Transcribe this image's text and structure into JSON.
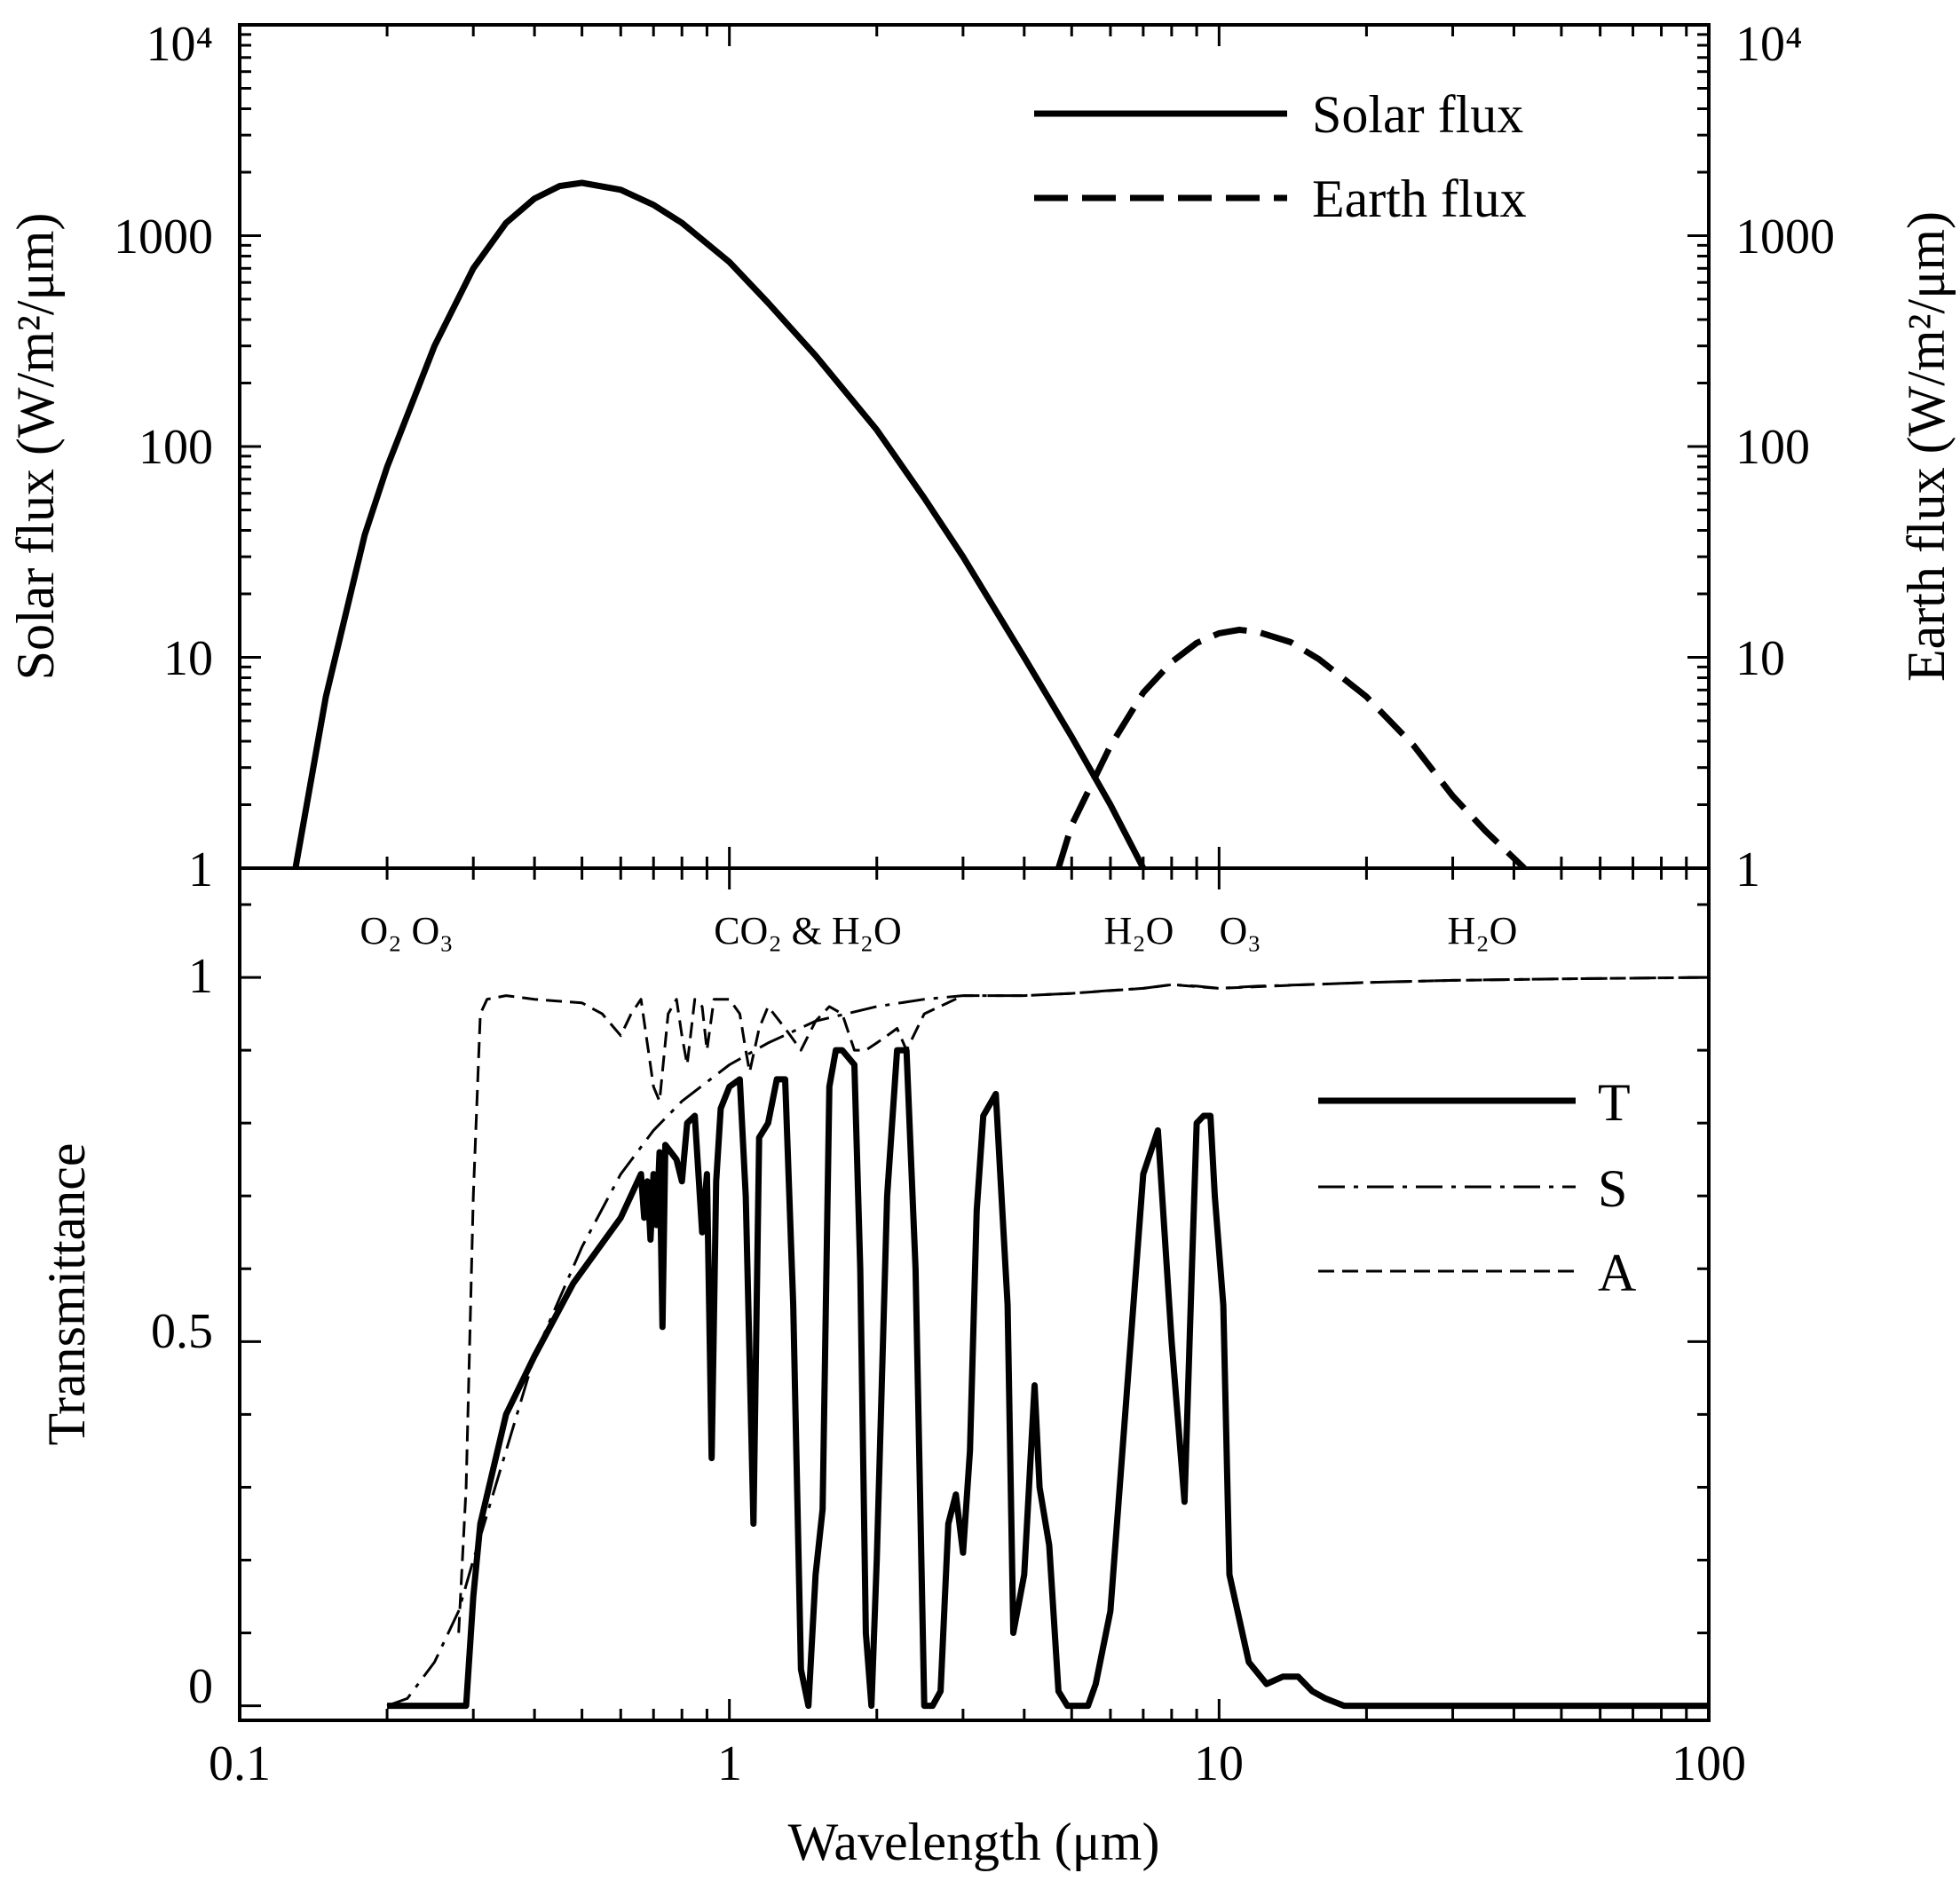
{
  "chart_data": [
    {
      "type": "line",
      "x_scale": "log",
      "y_scale": "log",
      "xlim": [
        0.1,
        100
      ],
      "ylim": [
        1,
        10000
      ],
      "ylabel_left": "Solar flux (W/m²/μm)",
      "ylabel_right": "Earth flux (W/m²/μm)",
      "y_tick_labels": [
        "1",
        "10",
        "100",
        "1000",
        "10⁴"
      ],
      "legend_position": "top-right",
      "series": [
        {
          "name": "Solar flux",
          "style": "solid",
          "x": [
            0.13,
            0.15,
            0.18,
            0.2,
            0.25,
            0.3,
            0.35,
            0.4,
            0.45,
            0.5,
            0.6,
            0.7,
            0.8,
            1.0,
            1.2,
            1.5,
            2.0,
            2.5,
            3.0,
            4.0,
            5.0,
            6.0,
            7.0
          ],
          "y": [
            1.0,
            6.5,
            38,
            80,
            300,
            700,
            1150,
            1500,
            1720,
            1780,
            1650,
            1400,
            1150,
            750,
            480,
            270,
            120,
            57,
            30,
            10,
            4.2,
            2.0,
            1.0
          ]
        },
        {
          "name": "Earth flux",
          "style": "dashed",
          "x": [
            4.7,
            5,
            6,
            7,
            8,
            9,
            10,
            11,
            12,
            14,
            16,
            20,
            25,
            30,
            35,
            42
          ],
          "y": [
            1.0,
            1.6,
            3.8,
            6.8,
            9.5,
            11.7,
            13.0,
            13.5,
            13.2,
            11.8,
            9.8,
            6.5,
            3.8,
            2.2,
            1.5,
            1.0
          ]
        }
      ]
    },
    {
      "type": "line",
      "x_scale": "log",
      "xlim": [
        0.1,
        100
      ],
      "ylim": [
        -0.02,
        1.15
      ],
      "xlabel": "Wavelength (μm)",
      "ylabel": "Transmittance",
      "x_tick_labels": [
        "0.1",
        "1",
        "10",
        "100"
      ],
      "y_tick_labels": [
        "0",
        "0.5",
        "1"
      ],
      "legend_position": "right",
      "band_labels": [
        {
          "text": "O₂ O₃",
          "x": 0.3
        },
        {
          "text": "CO₂ & H₂O",
          "x": 1.25
        },
        {
          "text": "H₂O",
          "x": 6.3
        },
        {
          "text": "O₃",
          "x": 10.5
        },
        {
          "text": "H₂O",
          "x": 25
        }
      ],
      "series": [
        {
          "name": "T",
          "style": "solid",
          "x": [
            0.2,
            0.25,
            0.29,
            0.3,
            0.31,
            0.35,
            0.4,
            0.48,
            0.6,
            0.66,
            0.67,
            0.68,
            0.69,
            0.7,
            0.71,
            0.72,
            0.73,
            0.74,
            0.78,
            0.8,
            0.82,
            0.85,
            0.88,
            0.9,
            0.92,
            0.94,
            0.96,
            1.0,
            1.05,
            1.08,
            1.12,
            1.15,
            1.2,
            1.25,
            1.3,
            1.35,
            1.4,
            1.45,
            1.5,
            1.55,
            1.6,
            1.65,
            1.7,
            1.8,
            1.85,
            1.9,
            1.95,
            2.0,
            2.1,
            2.2,
            2.3,
            2.4,
            2.5,
            2.6,
            2.7,
            2.8,
            2.9,
            3.0,
            3.1,
            3.2,
            3.3,
            3.5,
            3.7,
            3.8,
            4.0,
            4.2,
            4.3,
            4.5,
            4.7,
            4.9,
            5.2,
            5.4,
            5.6,
            6.0,
            7.0,
            7.5,
            8.0,
            8.5,
            8.8,
            9.0,
            9.3,
            9.6,
            9.8,
            10.2,
            10.5,
            11.5,
            12.5,
            13.5,
            14.5,
            15.5,
            16.5,
            18,
            20,
            24,
            30,
            50,
            100
          ],
          "y": [
            0,
            0,
            0,
            0.15,
            0.25,
            0.4,
            0.48,
            0.58,
            0.67,
            0.73,
            0.67,
            0.72,
            0.64,
            0.73,
            0.66,
            0.76,
            0.52,
            0.77,
            0.75,
            0.72,
            0.8,
            0.81,
            0.65,
            0.73,
            0.34,
            0.72,
            0.82,
            0.85,
            0.86,
            0.7,
            0.25,
            0.78,
            0.8,
            0.86,
            0.86,
            0.55,
            0.05,
            0.0,
            0.18,
            0.27,
            0.85,
            0.9,
            0.9,
            0.88,
            0.6,
            0.1,
            0.0,
            0.2,
            0.7,
            0.9,
            0.9,
            0.6,
            0.0,
            0.0,
            0.02,
            0.25,
            0.29,
            0.21,
            0.35,
            0.68,
            0.81,
            0.84,
            0.55,
            0.1,
            0.18,
            0.44,
            0.3,
            0.22,
            0.02,
            0.0,
            0.0,
            0.0,
            0.03,
            0.13,
            0.73,
            0.79,
            0.5,
            0.28,
            0.6,
            0.8,
            0.81,
            0.81,
            0.7,
            0.55,
            0.18,
            0.06,
            0.03,
            0.04,
            0.04,
            0.02,
            0.01,
            0.0,
            0.0,
            0.0,
            0.0,
            0.0,
            0.0
          ]
        },
        {
          "name": "S",
          "style": "dash-dot",
          "x": [
            0.2,
            0.22,
            0.25,
            0.28,
            0.3,
            0.35,
            0.4,
            0.5,
            0.6,
            0.7,
            0.8,
            1.0,
            1.2,
            1.5,
            2.0,
            2.5,
            3.0,
            4.0,
            5.0,
            6.0,
            7.0,
            8.0,
            9.0,
            10.0,
            12.0,
            15.0,
            20.0,
            30.0,
            50.0,
            100.0
          ],
          "y": [
            0,
            0.01,
            0.06,
            0.13,
            0.2,
            0.35,
            0.48,
            0.63,
            0.73,
            0.79,
            0.83,
            0.88,
            0.91,
            0.94,
            0.96,
            0.97,
            0.975,
            0.975,
            0.978,
            0.982,
            0.985,
            0.99,
            0.988,
            0.985,
            0.988,
            0.99,
            0.993,
            0.996,
            0.998,
            1.0
          ]
        },
        {
          "name": "A",
          "style": "dashed",
          "x": [
            0.28,
            0.29,
            0.3,
            0.31,
            0.32,
            0.35,
            0.4,
            0.5,
            0.55,
            0.6,
            0.63,
            0.66,
            0.7,
            0.72,
            0.75,
            0.78,
            0.8,
            0.82,
            0.85,
            0.88,
            0.9,
            0.93,
            0.96,
            1.0,
            1.05,
            1.08,
            1.1,
            1.15,
            1.2,
            1.3,
            1.4,
            1.5,
            1.6,
            1.7,
            1.8,
            1.9,
            2.0,
            2.1,
            2.2,
            2.3,
            2.5,
            3.0,
            4.0,
            5.0,
            7.0,
            8.0,
            10.0,
            15.0,
            20.0,
            30.0,
            50.0,
            100.0
          ],
          "y": [
            0.1,
            0.3,
            0.7,
            0.95,
            0.97,
            0.975,
            0.97,
            0.965,
            0.95,
            0.92,
            0.95,
            0.97,
            0.85,
            0.83,
            0.95,
            0.97,
            0.92,
            0.88,
            0.97,
            0.96,
            0.9,
            0.97,
            0.97,
            0.97,
            0.95,
            0.9,
            0.87,
            0.93,
            0.96,
            0.93,
            0.9,
            0.94,
            0.96,
            0.95,
            0.9,
            0.9,
            0.91,
            0.92,
            0.93,
            0.9,
            0.95,
            0.975,
            0.975,
            0.978,
            0.985,
            0.99,
            0.985,
            0.99,
            0.993,
            0.996,
            0.998,
            1.0
          ]
        }
      ]
    }
  ]
}
